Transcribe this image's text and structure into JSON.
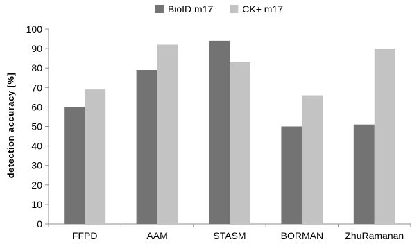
{
  "chart_data": {
    "type": "bar",
    "title": "",
    "xlabel": "",
    "ylabel": "detection accuracy [%]",
    "categories": [
      "FFPD",
      "AAM",
      "STASM",
      "BORMAN",
      "ZhuRamanan"
    ],
    "series": [
      {
        "name": "BioID m17",
        "color": "#737373",
        "values": [
          60,
          79,
          94,
          50,
          51
        ]
      },
      {
        "name": "CK+ m17",
        "color": "#c3c3c3",
        "values": [
          69,
          92,
          83,
          66,
          90
        ]
      }
    ],
    "ylim": [
      0,
      100
    ],
    "yticks": [
      0,
      10,
      20,
      30,
      40,
      50,
      60,
      70,
      80,
      90,
      100
    ],
    "grid": false,
    "legend_position": "top-center"
  }
}
